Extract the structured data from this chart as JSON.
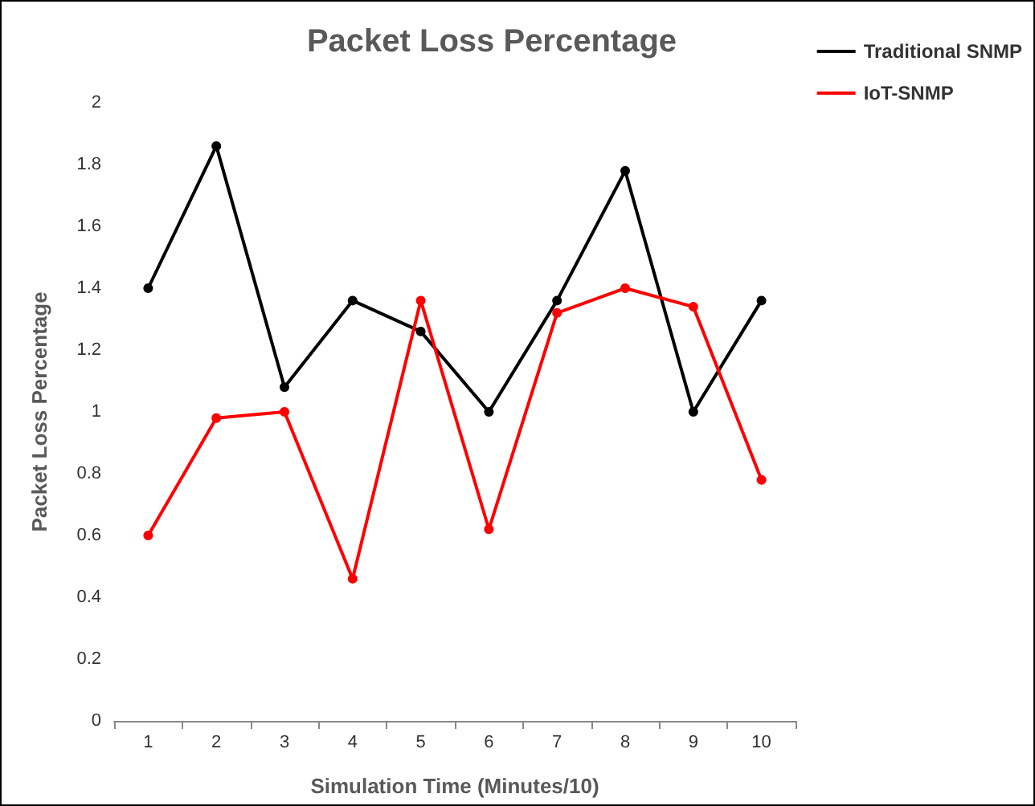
{
  "chart_data": {
    "type": "line",
    "title": "Packet Loss Percentage",
    "xlabel": "Simulation Time (Minutes/10)",
    "ylabel": "Packet Loss Percentage",
    "categories": [
      "1",
      "2",
      "3",
      "4",
      "5",
      "6",
      "7",
      "8",
      "9",
      "10"
    ],
    "series": [
      {
        "name": "Traditional SNMP",
        "color": "#000000",
        "values": [
          1.4,
          1.86,
          1.08,
          1.36,
          1.26,
          1.0,
          1.36,
          1.78,
          1.0,
          1.36
        ]
      },
      {
        "name": "IoT-SNMP",
        "color": "#ff0000",
        "values": [
          0.6,
          0.98,
          1.0,
          0.46,
          1.36,
          0.62,
          1.32,
          1.4,
          1.34,
          0.78
        ]
      }
    ],
    "ylim": [
      0,
      2
    ],
    "yticks": [
      0,
      0.2,
      0.4,
      0.6,
      0.8,
      1,
      1.2,
      1.4,
      1.6,
      1.8,
      2
    ],
    "grid": false,
    "legend": "top right",
    "marker": "circle",
    "line_style": "solid"
  }
}
